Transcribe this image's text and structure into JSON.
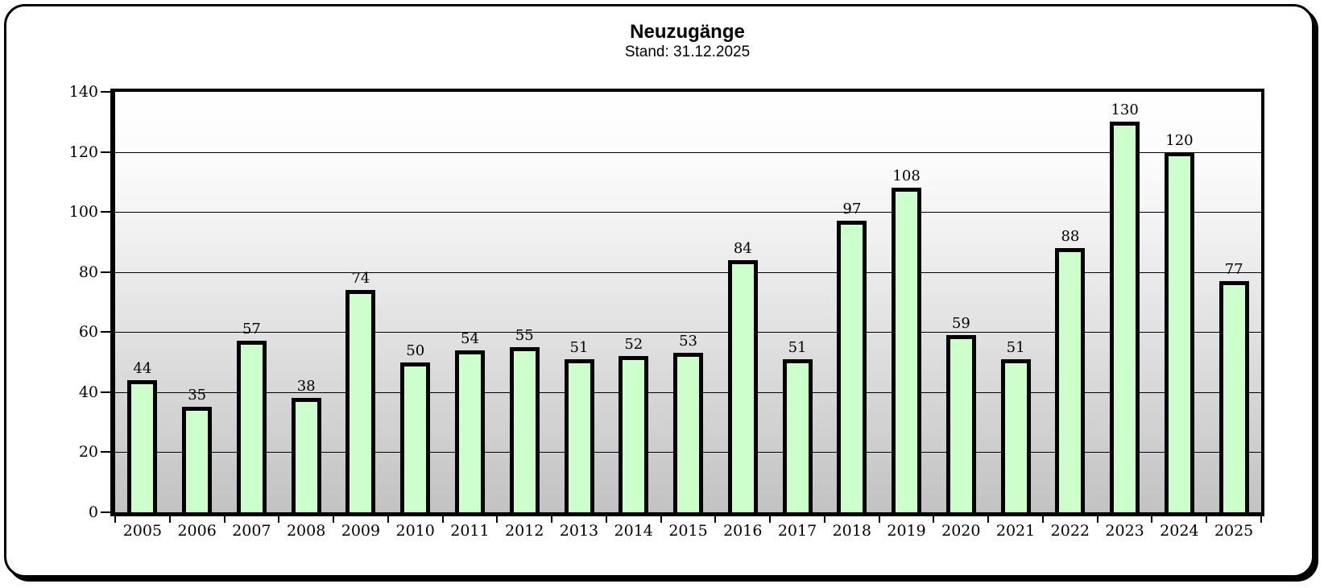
{
  "chart_data": {
    "type": "bar",
    "title": "Neuzugänge",
    "subtitle": "Stand: 31.12.2025",
    "categories": [
      "2005",
      "2006",
      "2007",
      "2008",
      "2009",
      "2010",
      "2011",
      "2012",
      "2013",
      "2014",
      "2015",
      "2016",
      "2017",
      "2018",
      "2019",
      "2020",
      "2021",
      "2022",
      "2023",
      "2024",
      "2025"
    ],
    "values": [
      44,
      35,
      57,
      38,
      74,
      50,
      54,
      55,
      51,
      52,
      53,
      84,
      51,
      97,
      108,
      59,
      51,
      88,
      130,
      120,
      77
    ],
    "xlabel": "",
    "ylabel": "",
    "ylim": [
      0,
      140
    ],
    "yticks": [
      0,
      20,
      40,
      60,
      80,
      100,
      120,
      140
    ],
    "grid": true,
    "legend": "none",
    "data_labels": true,
    "colors": {
      "bar_fill": "#ccffcc",
      "bar_border": "#000000",
      "plot_bg_top": "#ffffff",
      "plot_bg_bottom": "#c2c2c2",
      "gridline": "#000000",
      "text": "#000000",
      "frame_border": "#000000",
      "page_bg": "#ffffff"
    }
  }
}
